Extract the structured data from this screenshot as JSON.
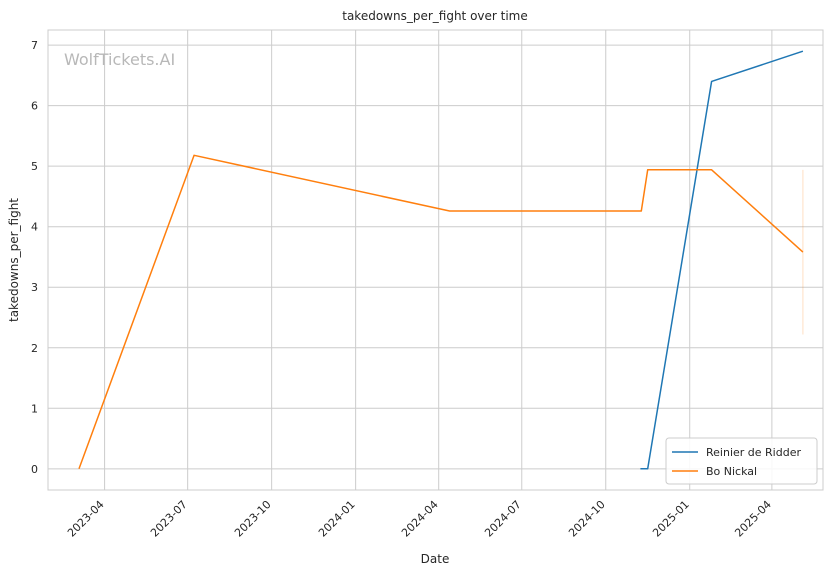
{
  "chart_data": {
    "type": "line",
    "title": "takedowns_per_fight over time",
    "xlabel": "Date",
    "ylabel": "takedowns_per_fight",
    "watermark": "WolfTickets.AI",
    "x_ticks": [
      "2023-04",
      "2023-07",
      "2023-10",
      "2024-01",
      "2024-04",
      "2024-07",
      "2024-10",
      "2025-01",
      "2025-04"
    ],
    "y_ticks": [
      "0",
      "1",
      "2",
      "3",
      "4",
      "5",
      "6",
      "7"
    ],
    "xlim": [
      "2023-01-29",
      "2025-05-27"
    ],
    "ylim": [
      -0.35,
      7.25
    ],
    "grid": true,
    "legend_position": "bottom-right",
    "series": [
      {
        "name": "Reinier de Ridder",
        "color": "#1f77b4",
        "points": [
          {
            "x": "2024-11-08",
            "y": 0
          },
          {
            "x": "2024-11-16",
            "y": 0
          },
          {
            "x": "2025-01-25",
            "y": 6.4
          },
          {
            "x": "2025-05-05",
            "y": 6.9
          }
        ]
      },
      {
        "name": "Bo Nickal",
        "color": "#ff7f0e",
        "points": [
          {
            "x": "2023-03-04",
            "y": 0
          },
          {
            "x": "2023-07-08",
            "y": 5.18
          },
          {
            "x": "2024-04-13",
            "y": 4.26
          },
          {
            "x": "2024-11-09",
            "y": 4.26
          },
          {
            "x": "2024-11-16",
            "y": 4.94
          },
          {
            "x": "2025-01-25",
            "y": 4.94
          },
          {
            "x": "2025-05-05",
            "y": 3.58
          }
        ]
      }
    ],
    "error_band": {
      "color": "#ff7f0e",
      "x": "2025-05-05",
      "y_low": 2.22,
      "y_high": 4.94
    }
  }
}
